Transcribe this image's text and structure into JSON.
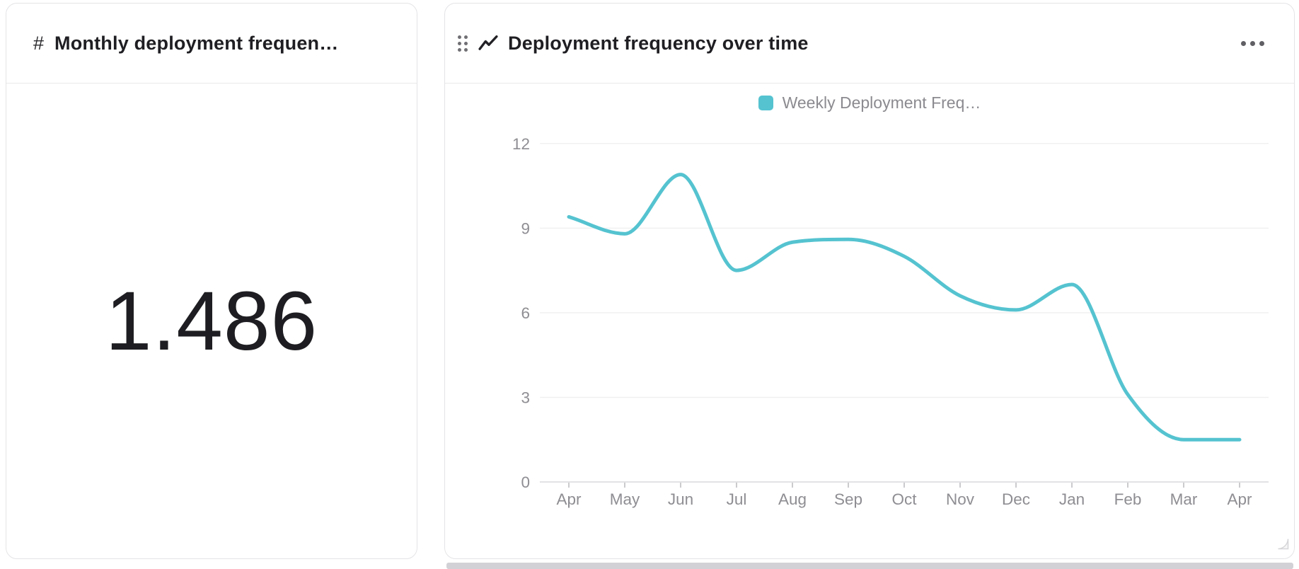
{
  "left_card": {
    "type_icon": "#",
    "title": "Monthly deployment frequen…",
    "value": "1.486"
  },
  "right_card": {
    "title": "Deployment frequency over time"
  },
  "chart_data": {
    "type": "line",
    "title": "Deployment frequency over time",
    "categories": [
      "Apr",
      "May",
      "Jun",
      "Jul",
      "Aug",
      "Sep",
      "Oct",
      "Nov",
      "Dec",
      "Jan",
      "Feb",
      "Mar",
      "Apr"
    ],
    "series": [
      {
        "name": "Weekly Deployment Freq…",
        "color": "#55c3d0",
        "values": [
          9.4,
          8.8,
          10.9,
          7.5,
          8.5,
          8.6,
          8.0,
          6.6,
          6.1,
          7.0,
          3.1,
          1.5,
          1.5
        ]
      }
    ],
    "ylim": [
      0,
      12
    ],
    "yticks": [
      0,
      3,
      6,
      9,
      12
    ],
    "xlabel": "",
    "ylabel": "",
    "grid": true,
    "smooth": true,
    "legend_position": "top",
    "colors": {
      "line": "#55c3d0",
      "axis_text": "#8e8e93",
      "gridline": "#f0f0f1",
      "axis_line": "#e2e2e5",
      "tick": "#cbcbce"
    }
  }
}
